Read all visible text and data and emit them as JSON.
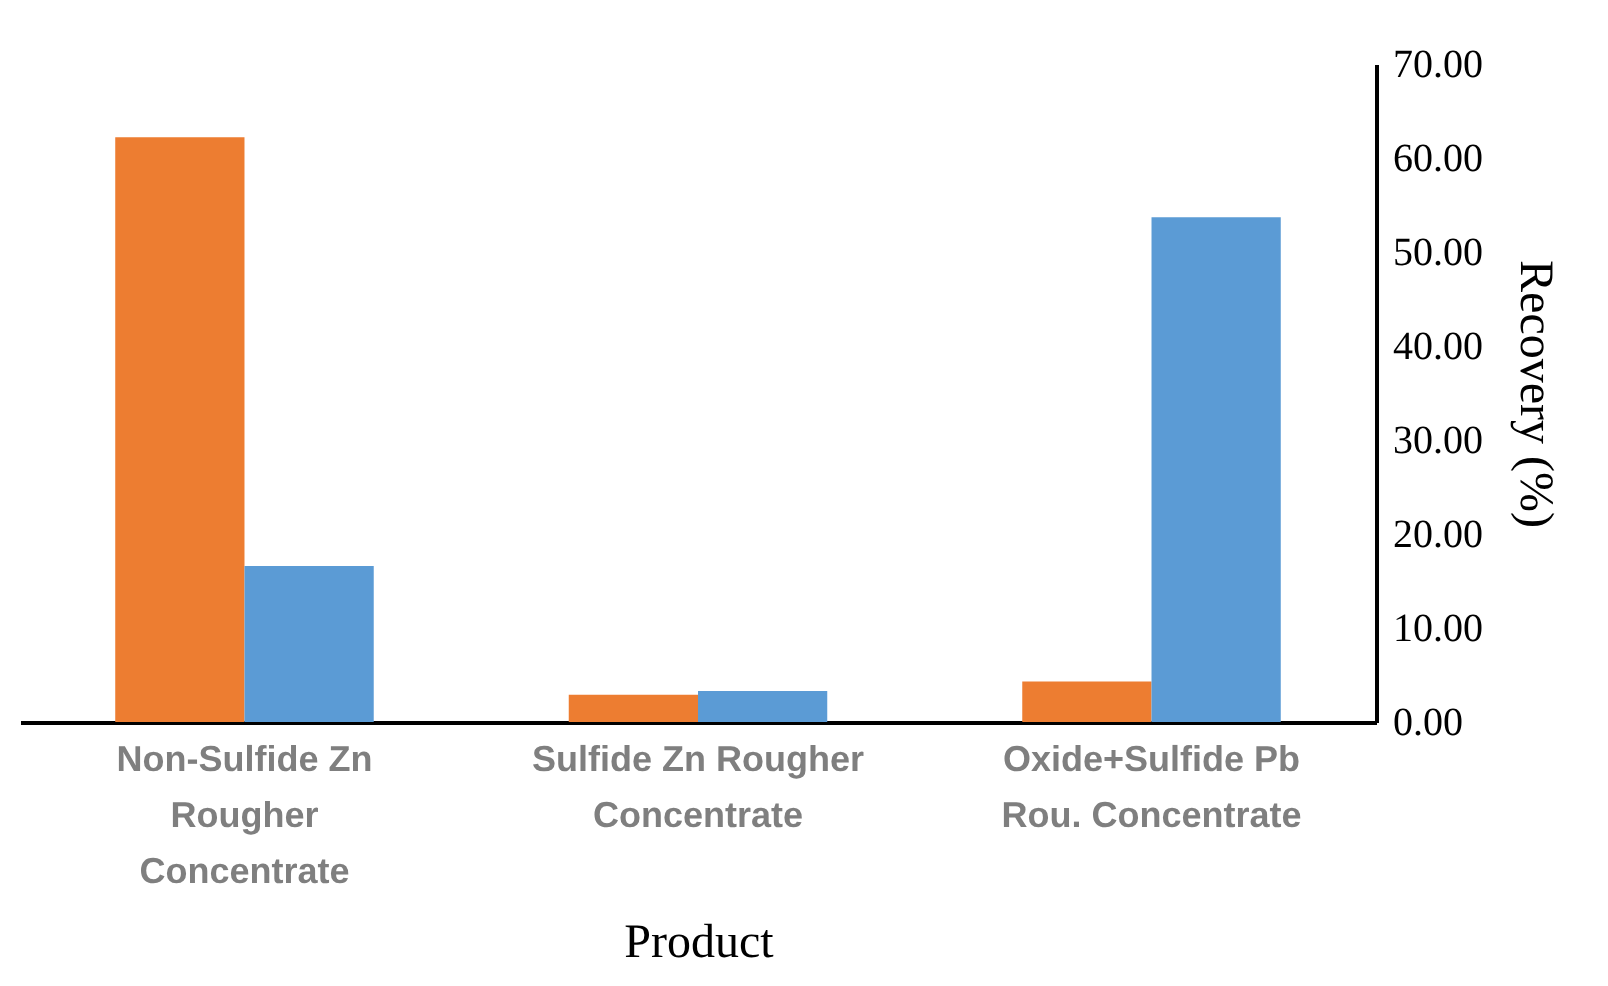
{
  "chart_data": {
    "type": "bar",
    "xlabel": "Product",
    "ylabel": "Recovery (%)",
    "categories": [
      "Non-Sulfide Zn Rougher Concentrate",
      "Sulfide Zn Rougher Concentrate",
      "Oxide+Sulfide Pb Rou. Concentrate"
    ],
    "series": [
      {
        "color": "#ed7d31",
        "values": [
          62.2,
          2.9,
          4.3
        ]
      },
      {
        "color": "#5b9bd5",
        "values": [
          16.6,
          3.3,
          53.7
        ]
      }
    ],
    "ylim": [
      0,
      70
    ],
    "yticks": [
      {
        "value": 0,
        "label": "0.00"
      },
      {
        "value": 10,
        "label": "10.00"
      },
      {
        "value": 20,
        "label": "20.00"
      },
      {
        "value": 30,
        "label": "30.00"
      },
      {
        "value": 40,
        "label": "40.00"
      },
      {
        "value": 50,
        "label": "50.00"
      },
      {
        "value": 60,
        "label": "60.00"
      },
      {
        "value": 70,
        "label": "70.00"
      }
    ],
    "grid": false
  }
}
